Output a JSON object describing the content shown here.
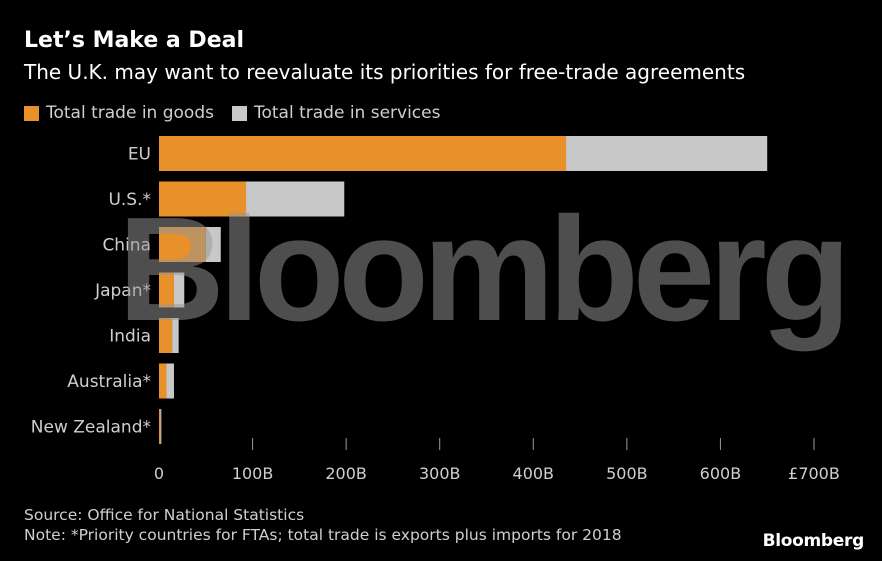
{
  "title": "Let’s Make a Deal",
  "subtitle": "The U.K. may want to reevaluate its priorities for free-trade agreements",
  "colors": {
    "goods": "#e8912b",
    "services": "#c8c8c8",
    "background": "#000000",
    "axis": "#9a9a9a",
    "text": "#cfcfcf"
  },
  "chart_data": {
    "type": "bar",
    "orientation": "horizontal",
    "stacked": true,
    "categories": [
      "EU",
      "U.S.*",
      "China",
      "Japan*",
      "India",
      "Australia*",
      "New Zealand*"
    ],
    "series": [
      {
        "name": "Total trade in goods",
        "values": [
          435,
          93,
          50,
          16,
          14,
          8,
          1.5
        ]
      },
      {
        "name": "Total trade in services",
        "values": [
          215,
          105,
          16,
          11,
          7,
          8,
          1
        ]
      }
    ],
    "xlim": [
      0,
      700
    ],
    "xticks": [
      0,
      100,
      200,
      300,
      400,
      500,
      600,
      700
    ],
    "xtick_labels": [
      "0",
      "100B",
      "200B",
      "300B",
      "400B",
      "500B",
      "600B",
      "£700B"
    ],
    "grid": false,
    "legend": "top-left"
  },
  "source": "Source: Office for National Statistics",
  "note": "Note: *Priority countries for FTAs; total trade is exports plus imports for 2018",
  "watermark": "Bloomberg",
  "logo": "Bloomberg"
}
